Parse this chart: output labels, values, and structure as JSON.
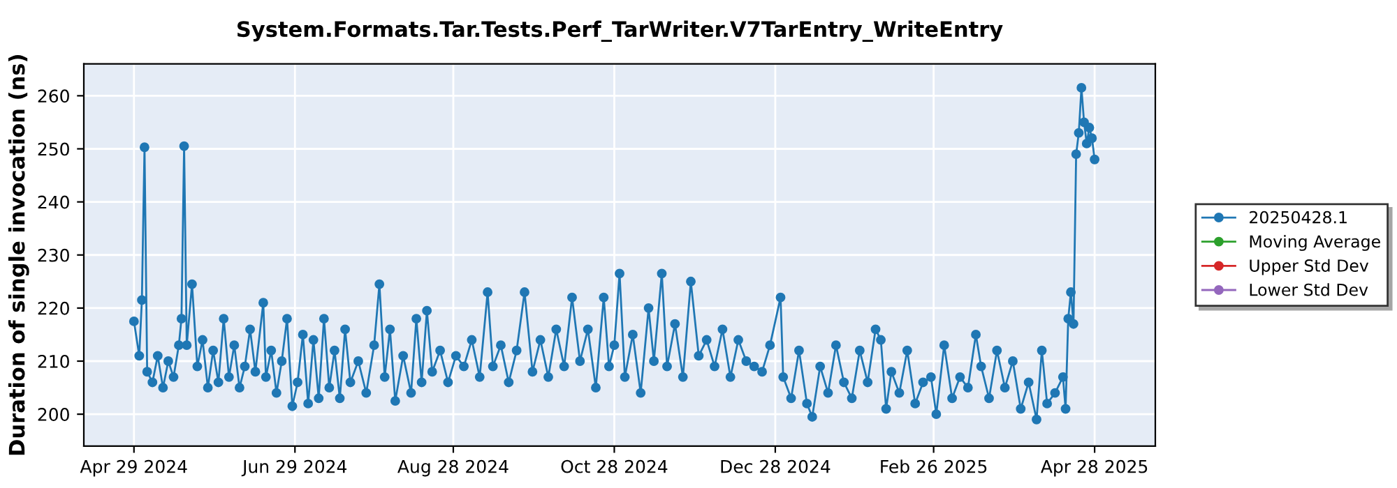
{
  "chart_data": {
    "type": "line",
    "title": "System.Formats.Tar.Tests.Perf_TarWriter.V7TarEntry_WriteEntry",
    "ylabel": "Duration of single invocation (ns)",
    "x": [
      "2024-04-29",
      "2024-05-01",
      "2024-05-02",
      "2024-05-03",
      "2024-05-04",
      "2024-05-06",
      "2024-05-08",
      "2024-05-10",
      "2024-05-12",
      "2024-05-14",
      "2024-05-16",
      "2024-05-17",
      "2024-05-18",
      "2024-05-19",
      "2024-05-21",
      "2024-05-23",
      "2024-05-25",
      "2024-05-27",
      "2024-05-29",
      "2024-05-31",
      "2024-06-02",
      "2024-06-04",
      "2024-06-06",
      "2024-06-08",
      "2024-06-10",
      "2024-06-12",
      "2024-06-14",
      "2024-06-17",
      "2024-06-18",
      "2024-06-20",
      "2024-06-22",
      "2024-06-24",
      "2024-06-26",
      "2024-06-28",
      "2024-06-30",
      "2024-07-02",
      "2024-07-04",
      "2024-07-06",
      "2024-07-08",
      "2024-07-10",
      "2024-07-12",
      "2024-07-14",
      "2024-07-16",
      "2024-07-18",
      "2024-07-20",
      "2024-07-23",
      "2024-07-26",
      "2024-07-29",
      "2024-07-31",
      "2024-08-02",
      "2024-08-04",
      "2024-08-06",
      "2024-08-09",
      "2024-08-12",
      "2024-08-14",
      "2024-08-16",
      "2024-08-18",
      "2024-08-20",
      "2024-08-23",
      "2024-08-26",
      "2024-08-29",
      "2024-09-01",
      "2024-09-04",
      "2024-09-07",
      "2024-09-10",
      "2024-09-12",
      "2024-09-15",
      "2024-09-18",
      "2024-09-21",
      "2024-09-24",
      "2024-09-27",
      "2024-09-30",
      "2024-10-03",
      "2024-10-06",
      "2024-10-09",
      "2024-10-12",
      "2024-10-15",
      "2024-10-18",
      "2024-10-21",
      "2024-10-24",
      "2024-10-26",
      "2024-10-28",
      "2024-10-30",
      "2024-11-01",
      "2024-11-04",
      "2024-11-07",
      "2024-11-10",
      "2024-11-12",
      "2024-11-15",
      "2024-11-17",
      "2024-11-20",
      "2024-11-23",
      "2024-11-26",
      "2024-11-29",
      "2024-12-02",
      "2024-12-05",
      "2024-12-08",
      "2024-12-11",
      "2024-12-14",
      "2024-12-17",
      "2024-12-20",
      "2024-12-23",
      "2024-12-26",
      "2024-12-30",
      "2024-12-31",
      "2025-01-03",
      "2025-01-06",
      "2025-01-09",
      "2025-01-11",
      "2025-01-14",
      "2025-01-17",
      "2025-01-20",
      "2025-01-23",
      "2025-01-26",
      "2025-01-29",
      "2025-02-01",
      "2025-02-04",
      "2025-02-06",
      "2025-02-08",
      "2025-02-10",
      "2025-02-13",
      "2025-02-16",
      "2025-02-19",
      "2025-02-22",
      "2025-02-25",
      "2025-02-27",
      "2025-03-02",
      "2025-03-05",
      "2025-03-08",
      "2025-03-11",
      "2025-03-14",
      "2025-03-16",
      "2025-03-19",
      "2025-03-22",
      "2025-03-25",
      "2025-03-28",
      "2025-03-31",
      "2025-04-03",
      "2025-04-06",
      "2025-04-08",
      "2025-04-10",
      "2025-04-13",
      "2025-04-16",
      "2025-04-17",
      "2025-04-18",
      "2025-04-19",
      "2025-04-20",
      "2025-04-21",
      "2025-04-22",
      "2025-04-23",
      "2025-04-24",
      "2025-04-25",
      "2025-04-26",
      "2025-04-27",
      "2025-04-28"
    ],
    "series": [
      {
        "name": "20250428.1",
        "color": "#1f77b4",
        "values": [
          217.5,
          211,
          221.5,
          250.3,
          208,
          206,
          211,
          205,
          210,
          207,
          213,
          218,
          250.5,
          213,
          224.5,
          209,
          214,
          205,
          212,
          206,
          218,
          207,
          213,
          205,
          209,
          216,
          208,
          221,
          207,
          212,
          204,
          210,
          218,
          201.5,
          206,
          215,
          202,
          214,
          203,
          218,
          205,
          212,
          203,
          216,
          206,
          210,
          204,
          213,
          224.5,
          207,
          216,
          202.5,
          211,
          204,
          218,
          206,
          219.5,
          208,
          212,
          206,
          211,
          209,
          214,
          207,
          223,
          209,
          213,
          206,
          212,
          223,
          208,
          214,
          207,
          216,
          209,
          222,
          210,
          216,
          205,
          222,
          209,
          213,
          226.5,
          207,
          215,
          204,
          220,
          210,
          226.5,
          209,
          217,
          207,
          225,
          211,
          214,
          209,
          216,
          207,
          214,
          210,
          209,
          208,
          213,
          222,
          207,
          203,
          212,
          202,
          199.5,
          209,
          204,
          213,
          206,
          203,
          212,
          206,
          216,
          214,
          201,
          208,
          204,
          212,
          202,
          206,
          207,
          200,
          213,
          203,
          207,
          205,
          215,
          209,
          203,
          212,
          205,
          210,
          201,
          206,
          199,
          212,
          202,
          204,
          207,
          201,
          218,
          223,
          217,
          249,
          253,
          261.5,
          255,
          251,
          254,
          252,
          248
        ]
      },
      {
        "name": "Moving Average",
        "color": "#2ca02c",
        "values": [
          null,
          null,
          null,
          null,
          null,
          null,
          null,
          null,
          null,
          null,
          null,
          null,
          null,
          null,
          null,
          null,
          null,
          null,
          null,
          null,
          null,
          null,
          null,
          null,
          null,
          null,
          null,
          null,
          null,
          null,
          null,
          null,
          null,
          null,
          null,
          null,
          null,
          null,
          null,
          null,
          null,
          null,
          null,
          null,
          null,
          null,
          null,
          null,
          null,
          null,
          null,
          null,
          null,
          null,
          null,
          null,
          null,
          null,
          null,
          null,
          null,
          null,
          null,
          null,
          null,
          null,
          null,
          null,
          null,
          null,
          null,
          null,
          null,
          null,
          null,
          null,
          null,
          null,
          null,
          null,
          null,
          null,
          null,
          null,
          null,
          null,
          null,
          null,
          null,
          null,
          null,
          null,
          null,
          null,
          null,
          null,
          null,
          null,
          null,
          null,
          null,
          null,
          null,
          null,
          null,
          null,
          null,
          null,
          null,
          null,
          null,
          null,
          null,
          null,
          null,
          null,
          null,
          null,
          null,
          null,
          null,
          null,
          null,
          null,
          null,
          null,
          null,
          null,
          null,
          null,
          null,
          null,
          null,
          null,
          null,
          null,
          null,
          null,
          null,
          null,
          null,
          null,
          null,
          null,
          null,
          null,
          null,
          null,
          null,
          null,
          null,
          null,
          null,
          null,
          null
        ]
      },
      {
        "name": "Upper Std Dev",
        "color": "#d62728",
        "values": [
          null,
          null,
          null,
          null,
          null,
          null,
          null,
          null,
          null,
          null,
          null,
          null,
          null,
          null,
          null,
          null,
          null,
          null,
          null,
          null,
          null,
          null,
          null,
          null,
          null,
          null,
          null,
          null,
          null,
          null,
          null,
          null,
          null,
          null,
          null,
          null,
          null,
          null,
          null,
          null,
          null,
          null,
          null,
          null,
          null,
          null,
          null,
          null,
          null,
          null,
          null,
          null,
          null,
          null,
          null,
          null,
          null,
          null,
          null,
          null,
          null,
          null,
          null,
          null,
          null,
          null,
          null,
          null,
          null,
          null,
          null,
          null,
          null,
          null,
          null,
          null,
          null,
          null,
          null,
          null,
          null,
          null,
          null,
          null,
          null,
          null,
          null,
          null,
          null,
          null,
          null,
          null,
          null,
          null,
          null,
          null,
          null,
          null,
          null,
          null,
          null,
          null,
          null,
          null,
          null,
          null,
          null,
          null,
          null,
          null,
          null,
          null,
          null,
          null,
          null,
          null,
          null,
          null,
          null,
          null,
          null,
          null,
          null,
          null,
          null,
          null,
          null,
          null,
          null,
          null,
          null,
          null,
          null,
          null,
          null,
          null,
          null,
          null,
          null,
          null,
          null,
          null,
          null,
          null,
          null,
          null,
          null,
          null,
          null,
          null,
          null,
          null,
          null,
          null,
          null
        ]
      },
      {
        "name": "Lower Std Dev",
        "color": "#9467bd",
        "values": [
          null,
          null,
          null,
          null,
          null,
          null,
          null,
          null,
          null,
          null,
          null,
          null,
          null,
          null,
          null,
          null,
          null,
          null,
          null,
          null,
          null,
          null,
          null,
          null,
          null,
          null,
          null,
          null,
          null,
          null,
          null,
          null,
          null,
          null,
          null,
          null,
          null,
          null,
          null,
          null,
          null,
          null,
          null,
          null,
          null,
          null,
          null,
          null,
          null,
          null,
          null,
          null,
          null,
          null,
          null,
          null,
          null,
          null,
          null,
          null,
          null,
          null,
          null,
          null,
          null,
          null,
          null,
          null,
          null,
          null,
          null,
          null,
          null,
          null,
          null,
          null,
          null,
          null,
          null,
          null,
          null,
          null,
          null,
          null,
          null,
          null,
          null,
          null,
          null,
          null,
          null,
          null,
          null,
          null,
          null,
          null,
          null,
          null,
          null,
          null,
          null,
          null,
          null,
          null,
          null,
          null,
          null,
          null,
          null,
          null,
          null,
          null,
          null,
          null,
          null,
          null,
          null,
          null,
          null,
          null,
          null,
          null,
          null,
          null,
          null,
          null,
          null,
          null,
          null,
          null,
          null,
          null,
          null,
          null,
          null,
          null,
          null,
          null,
          null,
          null,
          null,
          null,
          null,
          null,
          null,
          null,
          null,
          null,
          null,
          null,
          null,
          null,
          null,
          null,
          null
        ]
      }
    ],
    "xlim": [
      "2024-04-10",
      "2025-05-21"
    ],
    "xticks": [
      {
        "value": "2024-04-29",
        "label": "Apr 29 2024"
      },
      {
        "value": "2024-06-29",
        "label": "Jun 29 2024"
      },
      {
        "value": "2024-08-28",
        "label": "Aug 28 2024"
      },
      {
        "value": "2024-10-28",
        "label": "Oct 28 2024"
      },
      {
        "value": "2024-12-28",
        "label": "Dec 28 2024"
      },
      {
        "value": "2025-02-26",
        "label": "Feb 26 2025"
      },
      {
        "value": "2025-04-28",
        "label": "Apr 28 2025"
      }
    ],
    "ylim": [
      194,
      266
    ],
    "yticks": [
      200,
      210,
      220,
      230,
      240,
      250,
      260
    ],
    "grid": true,
    "legend": "right",
    "marker": "circle",
    "line_style": "solid"
  }
}
